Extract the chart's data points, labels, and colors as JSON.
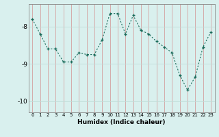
{
  "x": [
    0,
    1,
    2,
    3,
    4,
    5,
    6,
    7,
    8,
    9,
    10,
    11,
    12,
    13,
    14,
    15,
    16,
    17,
    18,
    19,
    20,
    21,
    22,
    23
  ],
  "y": [
    -7.8,
    -8.2,
    -8.6,
    -8.6,
    -8.95,
    -8.95,
    -8.7,
    -8.75,
    -8.75,
    -8.35,
    -7.65,
    -7.65,
    -8.2,
    -7.7,
    -8.1,
    -8.2,
    -8.4,
    -8.55,
    -8.7,
    -9.3,
    -9.7,
    -9.35,
    -8.55,
    -8.15
  ],
  "xlabel": "Humidex (Indice chaleur)",
  "ylim": [
    -10.3,
    -7.4
  ],
  "yticks": [
    -10,
    -9,
    -8
  ],
  "xticks": [
    0,
    1,
    2,
    3,
    4,
    5,
    6,
    7,
    8,
    9,
    10,
    11,
    12,
    13,
    14,
    15,
    16,
    17,
    18,
    19,
    20,
    21,
    22,
    23
  ],
  "line_color": "#1a6b5a",
  "bg_color": "#d9f0ee",
  "grid_color": "#c0dcd8",
  "marker": "+"
}
